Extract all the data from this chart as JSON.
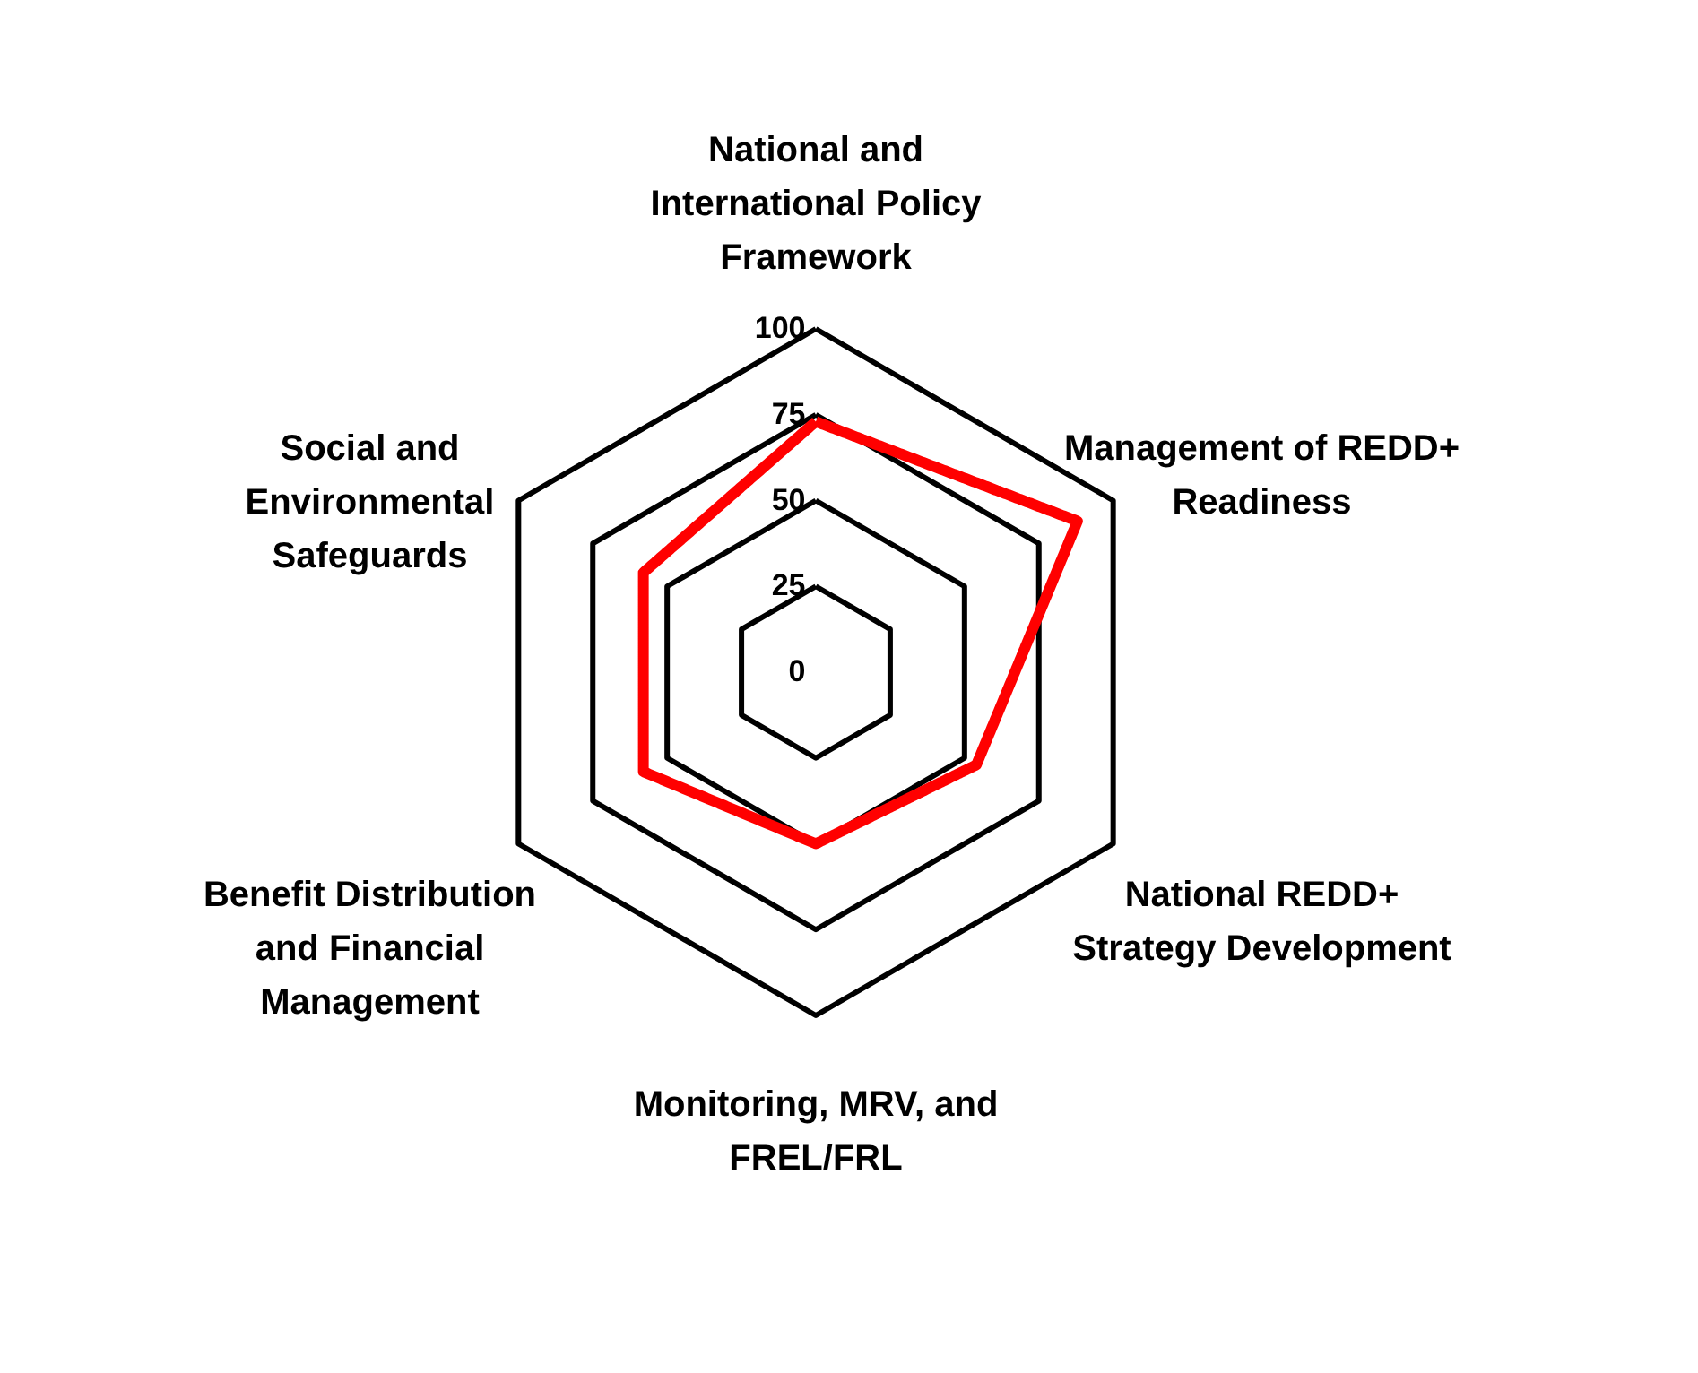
{
  "chart_data": {
    "type": "radar",
    "categories": [
      "National and International Policy Framework",
      "Management of REDD+ Readiness",
      "National REDD+ Strategy Development",
      "Monitoring, MRV, and FREL/FRL",
      "Benefit Distribution and Financial Management",
      "Social and Environmental Safeguards"
    ],
    "series": [
      {
        "color": "#ff0000",
        "values": [
          73,
          88,
          54,
          50,
          58,
          58
        ]
      }
    ],
    "ylim": [
      0,
      100
    ],
    "yticks": [
      0,
      25,
      50,
      75,
      100
    ],
    "grid": true,
    "marker": "none",
    "line_style": "solid"
  }
}
